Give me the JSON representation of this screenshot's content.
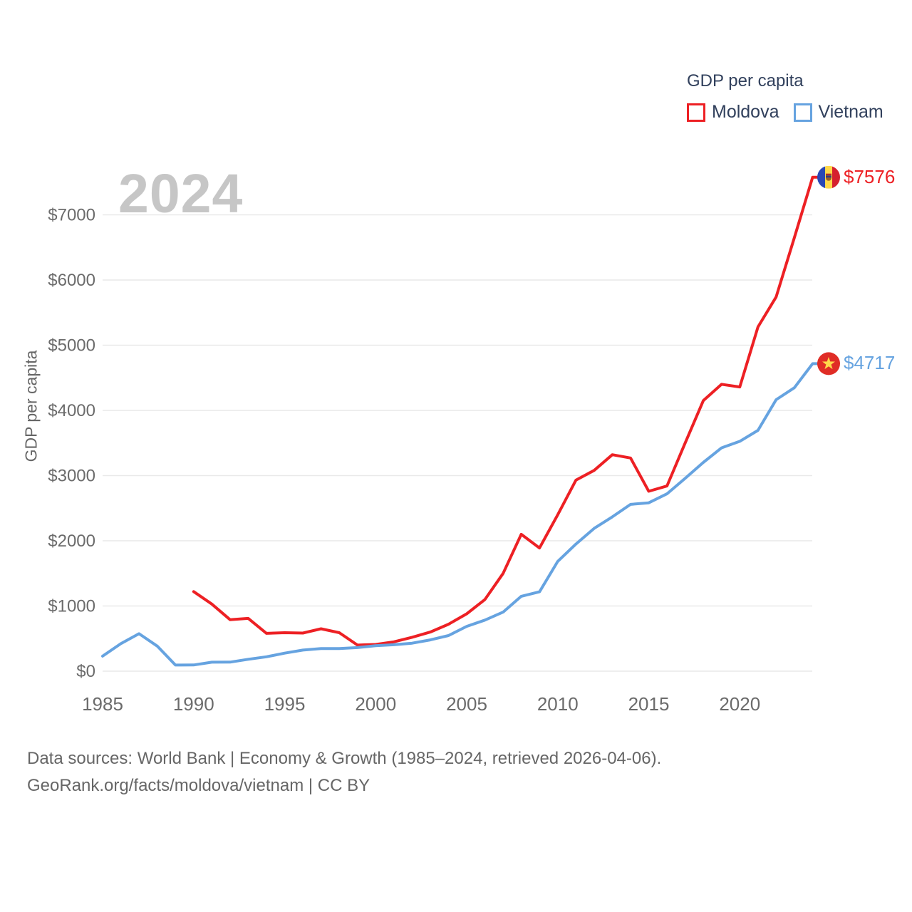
{
  "watermark": "2024",
  "legend": {
    "title": "GDP per capita",
    "items": [
      {
        "label": "Moldova",
        "color": "#ed2024"
      },
      {
        "label": "Vietnam",
        "color": "#66a3e0"
      }
    ]
  },
  "axes": {
    "y_title": "GDP per capita",
    "y_ticks": [
      {
        "v": 0,
        "label": "$0"
      },
      {
        "v": 1000,
        "label": "$1000"
      },
      {
        "v": 2000,
        "label": "$2000"
      },
      {
        "v": 3000,
        "label": "$3000"
      },
      {
        "v": 4000,
        "label": "$4000"
      },
      {
        "v": 5000,
        "label": "$5000"
      },
      {
        "v": 6000,
        "label": "$6000"
      },
      {
        "v": 7000,
        "label": "$7000"
      }
    ],
    "x_ticks": [
      {
        "v": 1985,
        "label": "1985"
      },
      {
        "v": 1990,
        "label": "1990"
      },
      {
        "v": 1995,
        "label": "1995"
      },
      {
        "v": 2000,
        "label": "2000"
      },
      {
        "v": 2005,
        "label": "2005"
      },
      {
        "v": 2010,
        "label": "2010"
      },
      {
        "v": 2015,
        "label": "2015"
      },
      {
        "v": 2020,
        "label": "2020"
      }
    ]
  },
  "end_labels": [
    {
      "series": "Moldova",
      "text": "$7576",
      "flag": "moldova-flag",
      "color": "#ed2024"
    },
    {
      "series": "Vietnam",
      "text": "$4717",
      "flag": "vietnam-flag",
      "color": "#66a3e0"
    }
  ],
  "footer": {
    "line1": "Data sources: World Bank | Economy & Growth (1985–2024, retrieved 2026-04-06).",
    "line2": "GeoRank.org/facts/moldova/vietnam | CC BY"
  },
  "chart_data": {
    "type": "line",
    "title": "GDP per capita",
    "xlabel": "",
    "ylabel": "GDP per capita",
    "grid": true,
    "legend_position": "top-right",
    "xlim": [
      1985,
      2024
    ],
    "ylim": [
      0,
      7576
    ],
    "x": [
      1985,
      1986,
      1987,
      1988,
      1989,
      1990,
      1991,
      1992,
      1993,
      1994,
      1995,
      1996,
      1997,
      1998,
      1999,
      2000,
      2001,
      2002,
      2003,
      2004,
      2005,
      2006,
      2007,
      2008,
      2009,
      2010,
      2011,
      2012,
      2013,
      2014,
      2015,
      2016,
      2017,
      2018,
      2019,
      2020,
      2021,
      2022,
      2023,
      2024
    ],
    "series": [
      {
        "name": "Moldova",
        "color": "#ed2024",
        "values": [
          null,
          null,
          null,
          null,
          null,
          1221,
          1030,
          790,
          810,
          580,
          590,
          585,
          650,
          590,
          400,
          410,
          450,
          520,
          600,
          720,
          880,
          1100,
          1500,
          2100,
          1890,
          2400,
          2930,
          3080,
          3320,
          3270,
          2760,
          2840,
          3500,
          4150,
          4400,
          4360,
          5280,
          5740,
          6650,
          7576
        ]
      },
      {
        "name": "Vietnam",
        "color": "#66a3e0",
        "values": [
          231,
          422,
          575,
          385,
          94,
          95,
          138,
          139,
          182,
          221,
          277,
          324,
          348,
          348,
          362,
          390,
          405,
          430,
          480,
          546,
          687,
          784,
          906,
          1149,
          1217,
          1684,
          1950,
          2190,
          2367,
          2558,
          2582,
          2720,
          2957,
          3202,
          3425,
          3526,
          3694,
          4164,
          4347,
          4717
        ]
      }
    ]
  }
}
